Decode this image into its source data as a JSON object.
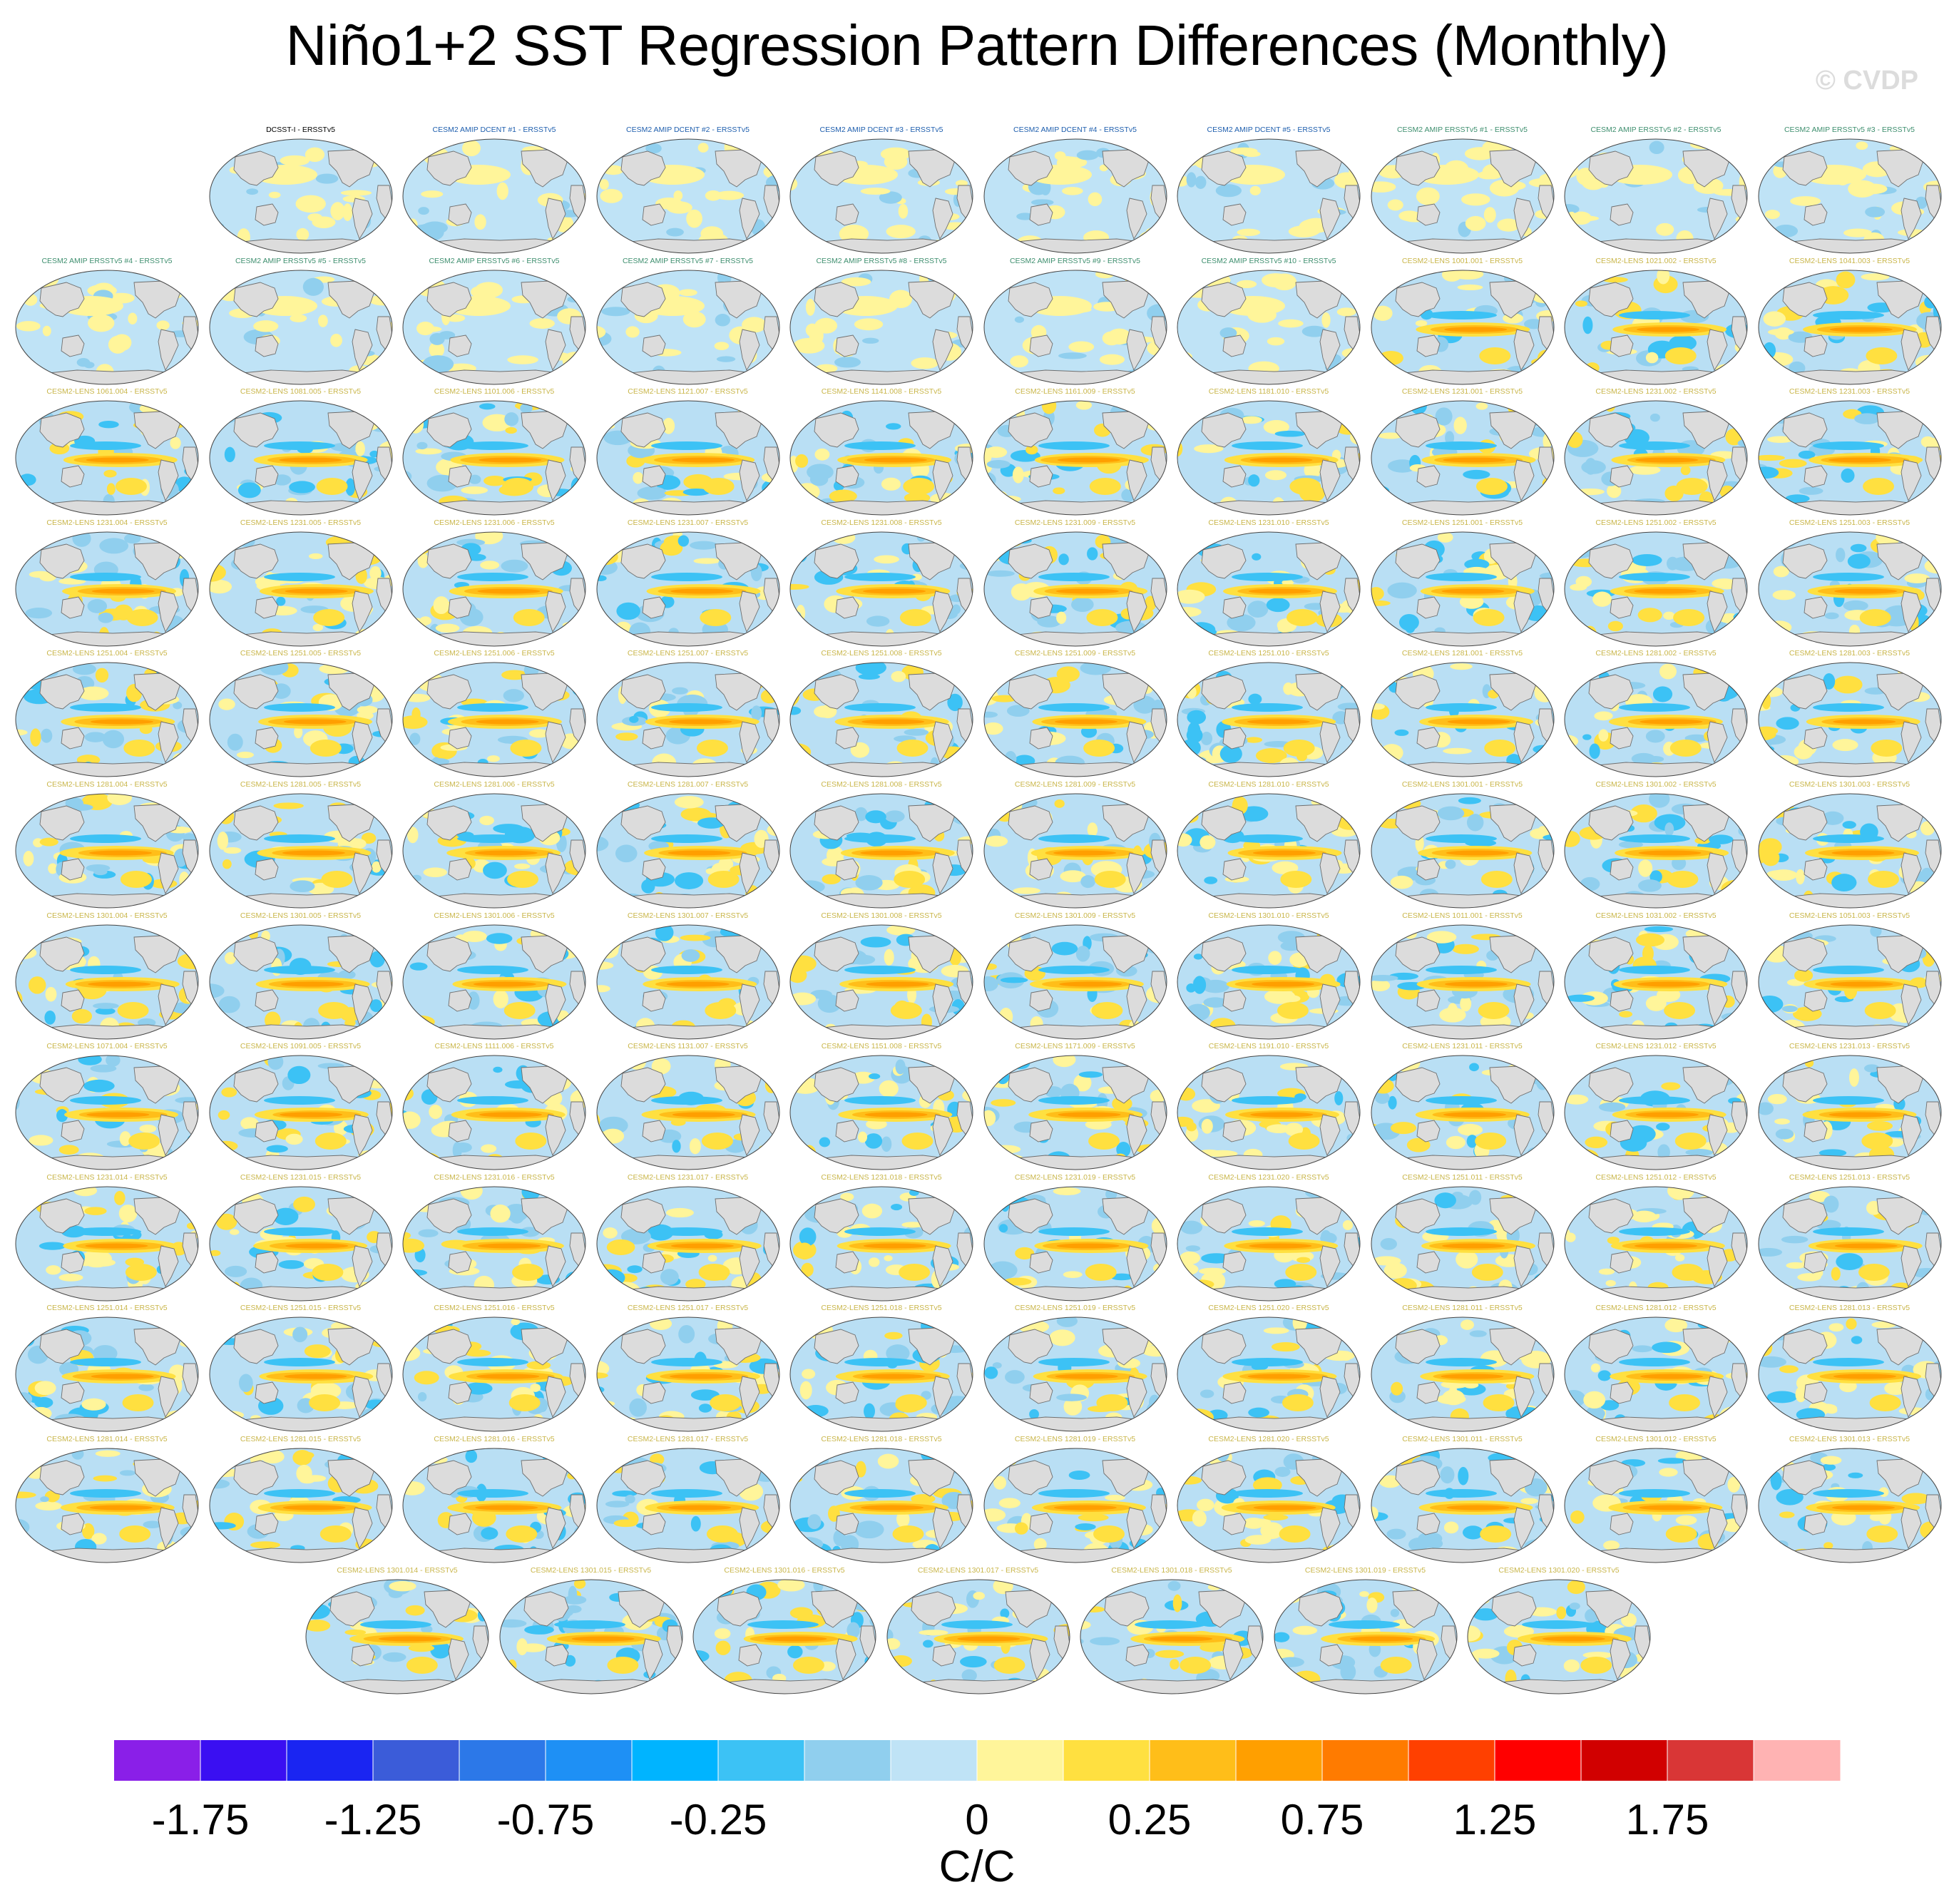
{
  "title": "Niño1+2 SST Regression Pattern Differences (Monthly)",
  "watermark": "© CVDP",
  "chart_data": {
    "type": "heatmap",
    "title": "Niño1+2 SST Regression Pattern Differences (Monthly)",
    "description_units": "C/C",
    "colorbar": {
      "unit_label": "C/C",
      "levels": [
        -2.0,
        -1.75,
        -1.5,
        -1.25,
        -1.0,
        -0.75,
        -0.5,
        -0.25,
        -0.1,
        0,
        0.1,
        0.25,
        0.5,
        0.75,
        1.0,
        1.25,
        1.5,
        1.75,
        2.0
      ],
      "tick_labels": [
        "-1.75",
        "-1.25",
        "-0.75",
        "-0.25",
        "0",
        "0.25",
        "0.75",
        "1.25",
        "1.75"
      ],
      "colors": [
        "#8a1fe8",
        "#3a0ff2",
        "#1a25f2",
        "#3b5cd9",
        "#2c78e8",
        "#1e90f5",
        "#00b4ff",
        "#3cc2f5",
        "#90cfee",
        "#bfe3f6",
        "#fff59a",
        "#ffe040",
        "#ffbe19",
        "#ff9f00",
        "#ff7b00",
        "#ff4000",
        "#ff0000",
        "#d10000",
        "#d93636",
        "#ffb3b3"
      ]
    },
    "panels": [
      {
        "label": "DCSST-I - ERSSTv5",
        "color": "#000000",
        "kind": "amip"
      },
      {
        "label": "CESM2 AMIP DCENT #1 - ERSSTv5",
        "color": "#1f5fae",
        "kind": "amip"
      },
      {
        "label": "CESM2 AMIP DCENT #2 - ERSSTv5",
        "color": "#1f5fae",
        "kind": "amip"
      },
      {
        "label": "CESM2 AMIP DCENT #3 - ERSSTv5",
        "color": "#1f5fae",
        "kind": "amip"
      },
      {
        "label": "CESM2 AMIP DCENT #4 - ERSSTv5",
        "color": "#1f5fae",
        "kind": "amip"
      },
      {
        "label": "CESM2 AMIP DCENT #5 - ERSSTv5",
        "color": "#1f5fae",
        "kind": "amip"
      },
      {
        "label": "CESM2 AMIP ERSSTv5 #1 - ERSSTv5",
        "color": "#3f8f6f",
        "kind": "amip"
      },
      {
        "label": "CESM2 AMIP ERSSTv5 #2 - ERSSTv5",
        "color": "#3f8f6f",
        "kind": "amip"
      },
      {
        "label": "CESM2 AMIP ERSSTv5 #3 - ERSSTv5",
        "color": "#3f8f6f",
        "kind": "amip"
      },
      {
        "label": "CESM2 AMIP ERSSTv5 #4 - ERSSTv5",
        "color": "#3f8f6f",
        "kind": "amip"
      },
      {
        "label": "CESM2 AMIP ERSSTv5 #5 - ERSSTv5",
        "color": "#3f8f6f",
        "kind": "amip"
      },
      {
        "label": "CESM2 AMIP ERSSTv5 #6 - ERSSTv5",
        "color": "#3f8f6f",
        "kind": "amip"
      },
      {
        "label": "CESM2 AMIP ERSSTv5 #7 - ERSSTv5",
        "color": "#3f8f6f",
        "kind": "amip"
      },
      {
        "label": "CESM2 AMIP ERSSTv5 #8 - ERSSTv5",
        "color": "#3f8f6f",
        "kind": "amip"
      },
      {
        "label": "CESM2 AMIP ERSSTv5 #9 - ERSSTv5",
        "color": "#3f8f6f",
        "kind": "amip"
      },
      {
        "label": "CESM2 AMIP ERSSTv5 #10 - ERSSTv5",
        "color": "#3f8f6f",
        "kind": "amip"
      },
      {
        "label": "CESM2-LENS 1001.001 - ERSSTv5",
        "color": "#c9b64a",
        "kind": "lens"
      },
      {
        "label": "CESM2-LENS 1021.002 - ERSSTv5",
        "color": "#c9b64a",
        "kind": "lens"
      },
      {
        "label": "CESM2-LENS 1041.003 - ERSSTv5",
        "color": "#c9b64a",
        "kind": "lens"
      },
      {
        "label": "CESM2-LENS 1061.004 - ERSSTv5",
        "color": "#c9b64a",
        "kind": "lens"
      },
      {
        "label": "CESM2-LENS 1081.005 - ERSSTv5",
        "color": "#c9b64a",
        "kind": "lens"
      },
      {
        "label": "CESM2-LENS 1101.006 - ERSSTv5",
        "color": "#c9b64a",
        "kind": "lens"
      },
      {
        "label": "CESM2-LENS 1121.007 - ERSSTv5",
        "color": "#c9b64a",
        "kind": "lens"
      },
      {
        "label": "CESM2-LENS 1141.008 - ERSSTv5",
        "color": "#c9b64a",
        "kind": "lens"
      },
      {
        "label": "CESM2-LENS 1161.009 - ERSSTv5",
        "color": "#c9b64a",
        "kind": "lens"
      },
      {
        "label": "CESM2-LENS 1181.010 - ERSSTv5",
        "color": "#c9b64a",
        "kind": "lens"
      },
      {
        "label": "CESM2-LENS 1231.001 - ERSSTv5",
        "color": "#c9b64a",
        "kind": "lens"
      },
      {
        "label": "CESM2-LENS 1231.002 - ERSSTv5",
        "color": "#c9b64a",
        "kind": "lens"
      },
      {
        "label": "CESM2-LENS 1231.003 - ERSSTv5",
        "color": "#c9b64a",
        "kind": "lens"
      },
      {
        "label": "CESM2-LENS 1231.004 - ERSSTv5",
        "color": "#c9b64a",
        "kind": "lens"
      },
      {
        "label": "CESM2-LENS 1231.005 - ERSSTv5",
        "color": "#c9b64a",
        "kind": "lens"
      },
      {
        "label": "CESM2-LENS 1231.006 - ERSSTv5",
        "color": "#c9b64a",
        "kind": "lens"
      },
      {
        "label": "CESM2-LENS 1231.007 - ERSSTv5",
        "color": "#c9b64a",
        "kind": "lens"
      },
      {
        "label": "CESM2-LENS 1231.008 - ERSSTv5",
        "color": "#c9b64a",
        "kind": "lens"
      },
      {
        "label": "CESM2-LENS 1231.009 - ERSSTv5",
        "color": "#c9b64a",
        "kind": "lens"
      },
      {
        "label": "CESM2-LENS 1231.010 - ERSSTv5",
        "color": "#c9b64a",
        "kind": "lens"
      },
      {
        "label": "CESM2-LENS 1251.001 - ERSSTv5",
        "color": "#c9b64a",
        "kind": "lens"
      },
      {
        "label": "CESM2-LENS 1251.002 - ERSSTv5",
        "color": "#c9b64a",
        "kind": "lens"
      },
      {
        "label": "CESM2-LENS 1251.003 - ERSSTv5",
        "color": "#c9b64a",
        "kind": "lens"
      },
      {
        "label": "CESM2-LENS 1251.004 - ERSSTv5",
        "color": "#c9b64a",
        "kind": "lens"
      },
      {
        "label": "CESM2-LENS 1251.005 - ERSSTv5",
        "color": "#c9b64a",
        "kind": "lens"
      },
      {
        "label": "CESM2-LENS 1251.006 - ERSSTv5",
        "color": "#c9b64a",
        "kind": "lens"
      },
      {
        "label": "CESM2-LENS 1251.007 - ERSSTv5",
        "color": "#c9b64a",
        "kind": "lens"
      },
      {
        "label": "CESM2-LENS 1251.008 - ERSSTv5",
        "color": "#c9b64a",
        "kind": "lens"
      },
      {
        "label": "CESM2-LENS 1251.009 - ERSSTv5",
        "color": "#c9b64a",
        "kind": "lens"
      },
      {
        "label": "CESM2-LENS 1251.010 - ERSSTv5",
        "color": "#c9b64a",
        "kind": "lens"
      },
      {
        "label": "CESM2-LENS 1281.001 - ERSSTv5",
        "color": "#c9b64a",
        "kind": "lens"
      },
      {
        "label": "CESM2-LENS 1281.002 - ERSSTv5",
        "color": "#c9b64a",
        "kind": "lens"
      },
      {
        "label": "CESM2-LENS 1281.003 - ERSSTv5",
        "color": "#c9b64a",
        "kind": "lens"
      },
      {
        "label": "CESM2-LENS 1281.004 - ERSSTv5",
        "color": "#c9b64a",
        "kind": "lens"
      },
      {
        "label": "CESM2-LENS 1281.005 - ERSSTv5",
        "color": "#c9b64a",
        "kind": "lens"
      },
      {
        "label": "CESM2-LENS 1281.006 - ERSSTv5",
        "color": "#c9b64a",
        "kind": "lens"
      },
      {
        "label": "CESM2-LENS 1281.007 - ERSSTv5",
        "color": "#c9b64a",
        "kind": "lens"
      },
      {
        "label": "CESM2-LENS 1281.008 - ERSSTv5",
        "color": "#c9b64a",
        "kind": "lens"
      },
      {
        "label": "CESM2-LENS 1281.009 - ERSSTv5",
        "color": "#c9b64a",
        "kind": "lens"
      },
      {
        "label": "CESM2-LENS 1281.010 - ERSSTv5",
        "color": "#c9b64a",
        "kind": "lens"
      },
      {
        "label": "CESM2-LENS 1301.001 - ERSSTv5",
        "color": "#c9b64a",
        "kind": "lens"
      },
      {
        "label": "CESM2-LENS 1301.002 - ERSSTv5",
        "color": "#c9b64a",
        "kind": "lens"
      },
      {
        "label": "CESM2-LENS 1301.003 - ERSSTv5",
        "color": "#c9b64a",
        "kind": "lens"
      },
      {
        "label": "CESM2-LENS 1301.004 - ERSSTv5",
        "color": "#c9b64a",
        "kind": "lens"
      },
      {
        "label": "CESM2-LENS 1301.005 - ERSSTv5",
        "color": "#c9b64a",
        "kind": "lens"
      },
      {
        "label": "CESM2-LENS 1301.006 - ERSSTv5",
        "color": "#c9b64a",
        "kind": "lens"
      },
      {
        "label": "CESM2-LENS 1301.007 - ERSSTv5",
        "color": "#c9b64a",
        "kind": "lens"
      },
      {
        "label": "CESM2-LENS 1301.008 - ERSSTv5",
        "color": "#c9b64a",
        "kind": "lens"
      },
      {
        "label": "CESM2-LENS 1301.009 - ERSSTv5",
        "color": "#c9b64a",
        "kind": "lens"
      },
      {
        "label": "CESM2-LENS 1301.010 - ERSSTv5",
        "color": "#c9b64a",
        "kind": "lens"
      },
      {
        "label": "CESM2-LENS 1011.001 - ERSSTv5",
        "color": "#c9b64a",
        "kind": "lens"
      },
      {
        "label": "CESM2-LENS 1031.002 - ERSSTv5",
        "color": "#c9b64a",
        "kind": "lens"
      },
      {
        "label": "CESM2-LENS 1051.003 - ERSSTv5",
        "color": "#c9b64a",
        "kind": "lens"
      },
      {
        "label": "CESM2-LENS 1071.004 - ERSSTv5",
        "color": "#c9b64a",
        "kind": "lens"
      },
      {
        "label": "CESM2-LENS 1091.005 - ERSSTv5",
        "color": "#c9b64a",
        "kind": "lens"
      },
      {
        "label": "CESM2-LENS 1111.006 - ERSSTv5",
        "color": "#c9b64a",
        "kind": "lens"
      },
      {
        "label": "CESM2-LENS 1131.007 - ERSSTv5",
        "color": "#c9b64a",
        "kind": "lens"
      },
      {
        "label": "CESM2-LENS 1151.008 - ERSSTv5",
        "color": "#c9b64a",
        "kind": "lens"
      },
      {
        "label": "CESM2-LENS 1171.009 - ERSSTv5",
        "color": "#c9b64a",
        "kind": "lens"
      },
      {
        "label": "CESM2-LENS 1191.010 - ERSSTv5",
        "color": "#c9b64a",
        "kind": "lens"
      },
      {
        "label": "CESM2-LENS 1231.011 - ERSSTv5",
        "color": "#c9b64a",
        "kind": "lens"
      },
      {
        "label": "CESM2-LENS 1231.012 - ERSSTv5",
        "color": "#c9b64a",
        "kind": "lens"
      },
      {
        "label": "CESM2-LENS 1231.013 - ERSSTv5",
        "color": "#c9b64a",
        "kind": "lens"
      },
      {
        "label": "CESM2-LENS 1231.014 - ERSSTv5",
        "color": "#c9b64a",
        "kind": "lens"
      },
      {
        "label": "CESM2-LENS 1231.015 - ERSSTv5",
        "color": "#c9b64a",
        "kind": "lens"
      },
      {
        "label": "CESM2-LENS 1231.016 - ERSSTv5",
        "color": "#c9b64a",
        "kind": "lens"
      },
      {
        "label": "CESM2-LENS 1231.017 - ERSSTv5",
        "color": "#c9b64a",
        "kind": "lens"
      },
      {
        "label": "CESM2-LENS 1231.018 - ERSSTv5",
        "color": "#c9b64a",
        "kind": "lens"
      },
      {
        "label": "CESM2-LENS 1231.019 - ERSSTv5",
        "color": "#c9b64a",
        "kind": "lens"
      },
      {
        "label": "CESM2-LENS 1231.020 - ERSSTv5",
        "color": "#c9b64a",
        "kind": "lens"
      },
      {
        "label": "CESM2-LENS 1251.011 - ERSSTv5",
        "color": "#c9b64a",
        "kind": "lens"
      },
      {
        "label": "CESM2-LENS 1251.012 - ERSSTv5",
        "color": "#c9b64a",
        "kind": "lens"
      },
      {
        "label": "CESM2-LENS 1251.013 - ERSSTv5",
        "color": "#c9b64a",
        "kind": "lens"
      },
      {
        "label": "CESM2-LENS 1251.014 - ERSSTv5",
        "color": "#c9b64a",
        "kind": "lens"
      },
      {
        "label": "CESM2-LENS 1251.015 - ERSSTv5",
        "color": "#c9b64a",
        "kind": "lens"
      },
      {
        "label": "CESM2-LENS 1251.016 - ERSSTv5",
        "color": "#c9b64a",
        "kind": "lens"
      },
      {
        "label": "CESM2-LENS 1251.017 - ERSSTv5",
        "color": "#c9b64a",
        "kind": "lens"
      },
      {
        "label": "CESM2-LENS 1251.018 - ERSSTv5",
        "color": "#c9b64a",
        "kind": "lens"
      },
      {
        "label": "CESM2-LENS 1251.019 - ERSSTv5",
        "color": "#c9b64a",
        "kind": "lens"
      },
      {
        "label": "CESM2-LENS 1251.020 - ERSSTv5",
        "color": "#c9b64a",
        "kind": "lens"
      },
      {
        "label": "CESM2-LENS 1281.011 - ERSSTv5",
        "color": "#c9b64a",
        "kind": "lens"
      },
      {
        "label": "CESM2-LENS 1281.012 - ERSSTv5",
        "color": "#c9b64a",
        "kind": "lens"
      },
      {
        "label": "CESM2-LENS 1281.013 - ERSSTv5",
        "color": "#c9b64a",
        "kind": "lens"
      },
      {
        "label": "CESM2-LENS 1281.014 - ERSSTv5",
        "color": "#c9b64a",
        "kind": "lens"
      },
      {
        "label": "CESM2-LENS 1281.015 - ERSSTv5",
        "color": "#c9b64a",
        "kind": "lens"
      },
      {
        "label": "CESM2-LENS 1281.016 - ERSSTv5",
        "color": "#c9b64a",
        "kind": "lens"
      },
      {
        "label": "CESM2-LENS 1281.017 - ERSSTv5",
        "color": "#c9b64a",
        "kind": "lens"
      },
      {
        "label": "CESM2-LENS 1281.018 - ERSSTv5",
        "color": "#c9b64a",
        "kind": "lens"
      },
      {
        "label": "CESM2-LENS 1281.019 - ERSSTv5",
        "color": "#c9b64a",
        "kind": "lens"
      },
      {
        "label": "CESM2-LENS 1281.020 - ERSSTv5",
        "color": "#c9b64a",
        "kind": "lens"
      },
      {
        "label": "CESM2-LENS 1301.011 - ERSSTv5",
        "color": "#c9b64a",
        "kind": "lens"
      },
      {
        "label": "CESM2-LENS 1301.012 - ERSSTv5",
        "color": "#c9b64a",
        "kind": "lens"
      },
      {
        "label": "CESM2-LENS 1301.013 - ERSSTv5",
        "color": "#c9b64a",
        "kind": "lens"
      },
      {
        "label": "CESM2-LENS 1301.014 - ERSSTv5",
        "color": "#c9b64a",
        "kind": "lens"
      },
      {
        "label": "CESM2-LENS 1301.015 - ERSSTv5",
        "color": "#c9b64a",
        "kind": "lens"
      },
      {
        "label": "CESM2-LENS 1301.016 - ERSSTv5",
        "color": "#c9b64a",
        "kind": "lens"
      },
      {
        "label": "CESM2-LENS 1301.017 - ERSSTv5",
        "color": "#c9b64a",
        "kind": "lens"
      },
      {
        "label": "CESM2-LENS 1301.018 - ERSSTv5",
        "color": "#c9b64a",
        "kind": "lens"
      },
      {
        "label": "CESM2-LENS 1301.019 - ERSSTv5",
        "color": "#c9b64a",
        "kind": "lens"
      },
      {
        "label": "CESM2-LENS 1301.020 - ERSSTv5",
        "color": "#c9b64a",
        "kind": "lens"
      }
    ]
  }
}
